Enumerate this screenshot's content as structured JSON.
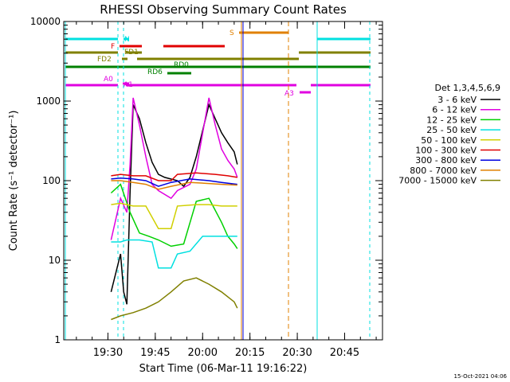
{
  "chart_data": {
    "type": "line",
    "title": "RHESSI Observing Summary Count Rates",
    "xlabel": "Start Time (06-Mar-11 19:16:22)",
    "ylabel": "Count Rate (s⁻¹ detector⁻¹)",
    "yscale": "log",
    "ylim": [
      1,
      10000
    ],
    "xlim": [
      "19:16",
      "20:57"
    ],
    "x_ticks": [
      "19:30",
      "19:45",
      "20:00",
      "20:15",
      "20:30",
      "20:45"
    ],
    "y_ticks": [
      "1",
      "10",
      "100",
      "1000",
      "10000"
    ],
    "timestamp": "15-Oct-2021 04:06",
    "legend_placement": "right",
    "legend_title": "Det 1,3,4,5,6,9",
    "series": [
      {
        "name": "3 - 6 keV",
        "color": "#000000",
        "points": [
          [
            "19:31",
            4
          ],
          [
            "19:34",
            12
          ],
          [
            "19:35",
            4
          ],
          [
            "19:36",
            2.8
          ],
          [
            "19:37",
            70
          ],
          [
            "19:38",
            900
          ],
          [
            "19:40",
            600
          ],
          [
            "19:42",
            300
          ],
          [
            "19:44",
            170
          ],
          [
            "19:46",
            120
          ],
          [
            "19:48",
            110
          ],
          [
            "19:52",
            100
          ],
          [
            "19:54",
            85
          ],
          [
            "19:56",
            110
          ],
          [
            "19:58",
            200
          ],
          [
            "20:02",
            900
          ],
          [
            "20:04",
            600
          ],
          [
            "20:06",
            400
          ],
          [
            "20:08",
            300
          ],
          [
            "20:10",
            230
          ],
          [
            "20:11",
            160
          ]
        ]
      },
      {
        "name": "6 - 12 keV",
        "color": "#e000e0",
        "points": [
          [
            "19:31",
            18
          ],
          [
            "19:34",
            60
          ],
          [
            "19:36",
            40
          ],
          [
            "19:37",
            160
          ],
          [
            "19:38",
            1100
          ],
          [
            "19:40",
            500
          ],
          [
            "19:42",
            200
          ],
          [
            "19:44",
            90
          ],
          [
            "19:46",
            75
          ],
          [
            "19:50",
            60
          ],
          [
            "19:52",
            75
          ],
          [
            "19:56",
            90
          ],
          [
            "19:58",
            140
          ],
          [
            "20:02",
            1100
          ],
          [
            "20:04",
            500
          ],
          [
            "20:06",
            250
          ],
          [
            "20:08",
            180
          ],
          [
            "20:10",
            140
          ],
          [
            "20:11",
            110
          ]
        ]
      },
      {
        "name": "12 - 25 keV",
        "color": "#00d000",
        "points": [
          [
            "19:31",
            70
          ],
          [
            "19:34",
            90
          ],
          [
            "19:37",
            40
          ],
          [
            "19:40",
            22
          ],
          [
            "19:43",
            20
          ],
          [
            "19:46",
            18
          ],
          [
            "19:50",
            15
          ],
          [
            "19:54",
            16
          ],
          [
            "19:58",
            55
          ],
          [
            "20:02",
            60
          ],
          [
            "20:06",
            30
          ],
          [
            "20:08",
            20
          ],
          [
            "20:10",
            16
          ],
          [
            "20:11",
            14
          ]
        ]
      },
      {
        "name": "25 - 50 keV",
        "color": "#00e0e0",
        "points": [
          [
            "19:31",
            17
          ],
          [
            "19:34",
            17
          ],
          [
            "19:36",
            18
          ],
          [
            "19:40",
            18
          ],
          [
            "19:44",
            17
          ],
          [
            "19:46",
            8
          ],
          [
            "19:50",
            8
          ],
          [
            "19:52",
            12
          ],
          [
            "19:56",
            13
          ],
          [
            "20:00",
            20
          ],
          [
            "20:04",
            20
          ],
          [
            "20:08",
            20
          ],
          [
            "20:11",
            20
          ]
        ]
      },
      {
        "name": "50 - 100 keV",
        "color": "#d0d000",
        "points": [
          [
            "19:31",
            50
          ],
          [
            "19:34",
            52
          ],
          [
            "19:38",
            48
          ],
          [
            "19:42",
            48
          ],
          [
            "19:46",
            25
          ],
          [
            "19:50",
            25
          ],
          [
            "19:52",
            48
          ],
          [
            "19:58",
            50
          ],
          [
            "20:02",
            50
          ],
          [
            "20:06",
            48
          ],
          [
            "20:11",
            48
          ]
        ]
      },
      {
        "name": "100 - 300 keV",
        "color": "#e00000",
        "points": [
          [
            "19:31",
            115
          ],
          [
            "19:34",
            120
          ],
          [
            "19:38",
            115
          ],
          [
            "19:42",
            115
          ],
          [
            "19:46",
            100
          ],
          [
            "19:50",
            100
          ],
          [
            "19:52",
            120
          ],
          [
            "19:58",
            125
          ],
          [
            "20:04",
            120
          ],
          [
            "20:08",
            115
          ],
          [
            "20:11",
            110
          ]
        ]
      },
      {
        "name": "300 - 800 keV",
        "color": "#0000e0",
        "points": [
          [
            "19:31",
            105
          ],
          [
            "19:34",
            108
          ],
          [
            "19:38",
            105
          ],
          [
            "19:42",
            100
          ],
          [
            "19:46",
            85
          ],
          [
            "19:50",
            95
          ],
          [
            "19:56",
            105
          ],
          [
            "20:02",
            100
          ],
          [
            "20:06",
            95
          ],
          [
            "20:11",
            90
          ]
        ]
      },
      {
        "name": "800 - 7000 keV",
        "color": "#e08000",
        "points": [
          [
            "19:31",
            100
          ],
          [
            "19:34",
            100
          ],
          [
            "19:38",
            95
          ],
          [
            "19:42",
            90
          ],
          [
            "19:46",
            78
          ],
          [
            "19:50",
            85
          ],
          [
            "19:56",
            95
          ],
          [
            "20:02",
            92
          ],
          [
            "20:06",
            90
          ],
          [
            "20:11",
            88
          ]
        ]
      },
      {
        "name": "7000 - 15000 keV",
        "color": "#808000",
        "points": [
          [
            "19:31",
            1.8
          ],
          [
            "19:34",
            2
          ],
          [
            "19:38",
            2.2
          ],
          [
            "19:42",
            2.5
          ],
          [
            "19:46",
            3
          ],
          [
            "19:50",
            4
          ],
          [
            "19:54",
            5.5
          ],
          [
            "19:58",
            6
          ],
          [
            "20:02",
            5
          ],
          [
            "20:06",
            4
          ],
          [
            "20:10",
            3
          ],
          [
            "20:11",
            2.5
          ]
        ]
      }
    ],
    "flag_labels": [
      "N",
      "F",
      "FD1",
      "FD2",
      "S",
      "RD0",
      "RD6",
      "A0",
      "A1",
      "A3"
    ]
  }
}
